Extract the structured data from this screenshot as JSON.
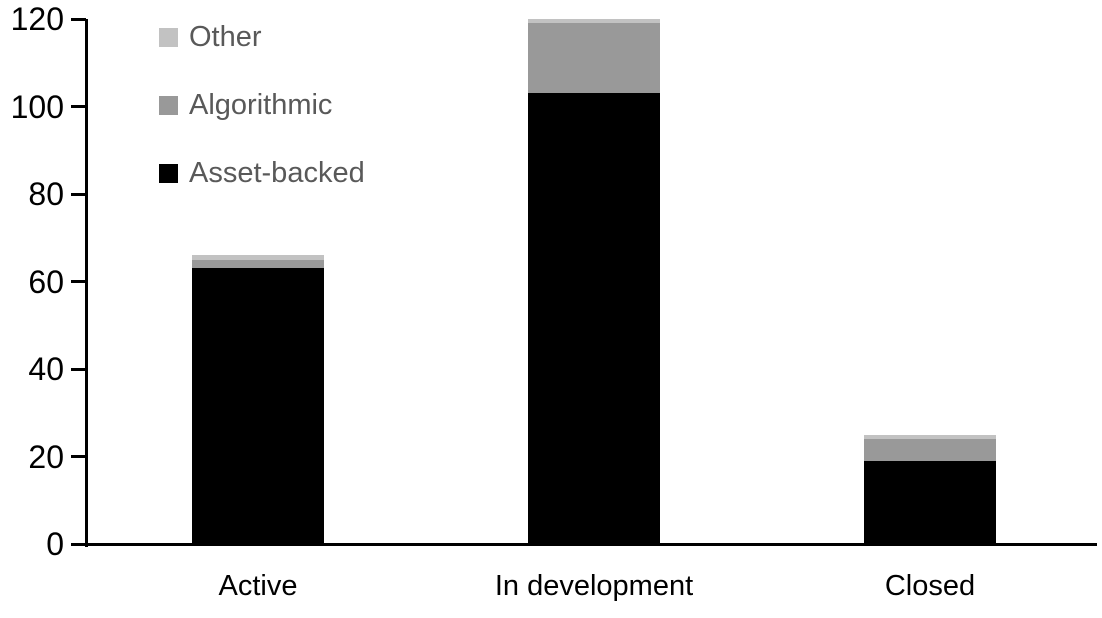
{
  "chart_data": {
    "type": "bar",
    "stacked": true,
    "title": "",
    "xlabel": "",
    "ylabel": "",
    "categories": [
      "Active",
      "In development",
      "Closed"
    ],
    "series": [
      {
        "name": "Asset-backed",
        "color": "#000000",
        "values": [
          63,
          103,
          19
        ]
      },
      {
        "name": "Algorithmic",
        "color": "#999999",
        "values": [
          2,
          16,
          5
        ]
      },
      {
        "name": "Other",
        "color": "#c2c2c2",
        "values": [
          1,
          1,
          1
        ]
      }
    ],
    "totals": [
      66,
      120,
      25
    ],
    "yticks": [
      0,
      20,
      40,
      60,
      80,
      100,
      120
    ],
    "ylim": [
      0,
      120
    ],
    "grid": false,
    "legend_position": "top-left",
    "legend_order": [
      "Other",
      "Algorithmic",
      "Asset-backed"
    ],
    "colors": {
      "asset_backed": "#000000",
      "algorithmic": "#999999",
      "other": "#c2c2c2",
      "legend_text": "#595959",
      "axis_text": "#000000",
      "axis_line": "#000000",
      "background": "#ffffff"
    }
  }
}
